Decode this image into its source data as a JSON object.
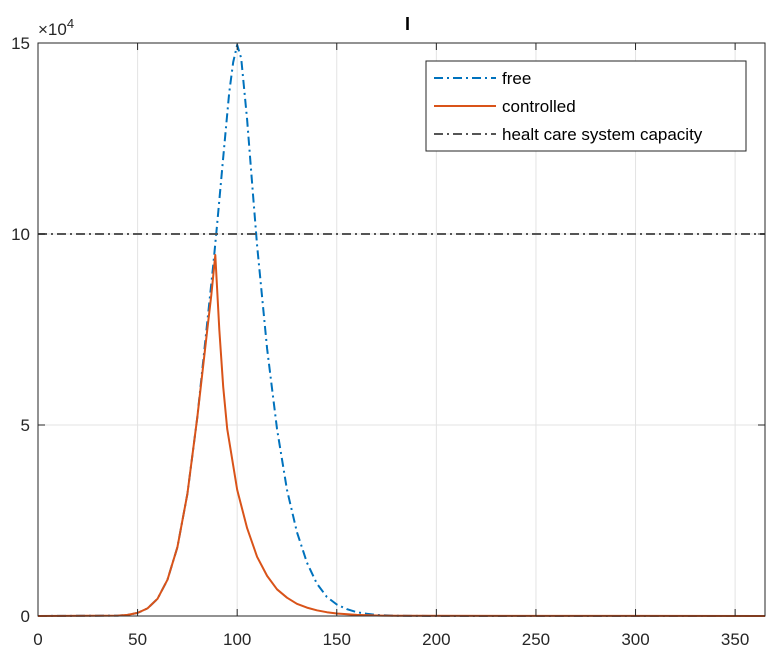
{
  "chart_data": {
    "type": "line",
    "title": "I",
    "xlabel": "",
    "ylabel": "",
    "xlim": [
      0,
      365
    ],
    "ylim": [
      0,
      150000
    ],
    "y_exponent_label": "×10",
    "y_exponent_power": "4",
    "x_ticks": [
      0,
      50,
      100,
      150,
      200,
      250,
      300,
      350
    ],
    "x_tick_labels": [
      "0",
      "50",
      "100",
      "150",
      "200",
      "250",
      "300",
      "350"
    ],
    "y_ticks": [
      0,
      50000,
      100000,
      150000
    ],
    "y_tick_labels": [
      "0",
      "5",
      "10",
      "15"
    ],
    "grid": true,
    "legend_position": "top-right",
    "series": [
      {
        "name": "free",
        "style": "dashdot",
        "color": "#0072BD",
        "x": [
          0,
          40,
          45,
          50,
          55,
          60,
          65,
          70,
          75,
          80,
          85,
          88,
          90,
          93,
          96,
          98,
          100,
          102,
          105,
          108,
          110,
          115,
          120,
          125,
          130,
          135,
          140,
          145,
          150,
          155,
          160,
          165,
          170,
          175,
          180,
          190,
          200,
          365
        ],
        "y": [
          0,
          100,
          300,
          800,
          2000,
          4500,
          9500,
          18000,
          32000,
          52000,
          77000,
          92000,
          103000,
          120000,
          137000,
          145000,
          149500,
          146000,
          130000,
          110000,
          97000,
          70000,
          49000,
          33000,
          22000,
          14000,
          8500,
          5000,
          3000,
          1800,
          1000,
          600,
          300,
          150,
          80,
          20,
          0,
          0
        ]
      },
      {
        "name": "controlled",
        "style": "solid",
        "color": "#D95319",
        "x": [
          0,
          40,
          45,
          50,
          55,
          60,
          65,
          70,
          75,
          80,
          85,
          87,
          89,
          91,
          93,
          95,
          100,
          105,
          110,
          115,
          120,
          125,
          130,
          135,
          140,
          145,
          150,
          160,
          170,
          180,
          365
        ],
        "y": [
          0,
          100,
          300,
          800,
          2000,
          4500,
          9500,
          18000,
          32000,
          52000,
          75000,
          84000,
          94500,
          75000,
          60000,
          49000,
          33000,
          23000,
          15500,
          10500,
          7000,
          4800,
          3200,
          2200,
          1500,
          1000,
          650,
          300,
          120,
          50,
          0
        ]
      },
      {
        "name": "healt care system capacity",
        "style": "dashdot",
        "color": "#555555",
        "x": [
          0,
          365
        ],
        "y": [
          100000,
          100000
        ]
      }
    ]
  }
}
